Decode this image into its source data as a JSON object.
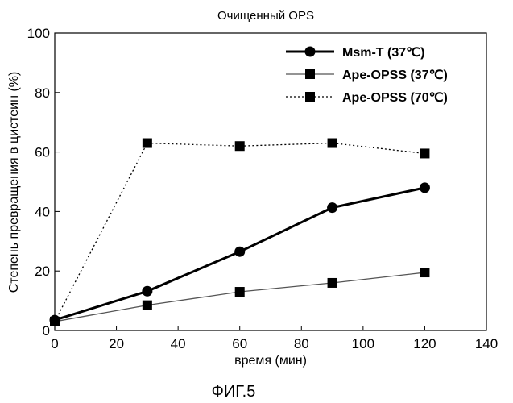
{
  "chart_data": {
    "type": "line",
    "title": "Очищенный OPS",
    "xlabel": "время (мин)",
    "ylabel": "Степень превращения в цистеин (%)",
    "xlim": [
      0,
      140
    ],
    "ylim": [
      0,
      100
    ],
    "xticks": [
      0,
      20,
      40,
      60,
      80,
      100,
      120,
      140
    ],
    "yticks": [
      0,
      20,
      40,
      60,
      80,
      100
    ],
    "grid": false,
    "legend_position": "top-right",
    "series": [
      {
        "name": "Msm-T (37℃)",
        "marker": "circle",
        "line": "solid-thick",
        "color": "#000000",
        "x": [
          0,
          30,
          60,
          90,
          120
        ],
        "y": [
          3.5,
          13.2,
          26.5,
          41.3,
          48
        ]
      },
      {
        "name": "Ape-OPSS (37℃)",
        "marker": "square",
        "line": "solid-thin",
        "color": "#555555",
        "x": [
          0,
          30,
          60,
          90,
          120
        ],
        "y": [
          3,
          8.5,
          13,
          16,
          19.5
        ]
      },
      {
        "name": "Ape-OPSS (70℃)",
        "marker": "square",
        "line": "dotted",
        "color": "#000000",
        "x": [
          0,
          30,
          60,
          90,
          120
        ],
        "y": [
          3,
          63,
          62,
          63,
          59.5
        ]
      }
    ]
  },
  "caption": "ФИГ.5"
}
